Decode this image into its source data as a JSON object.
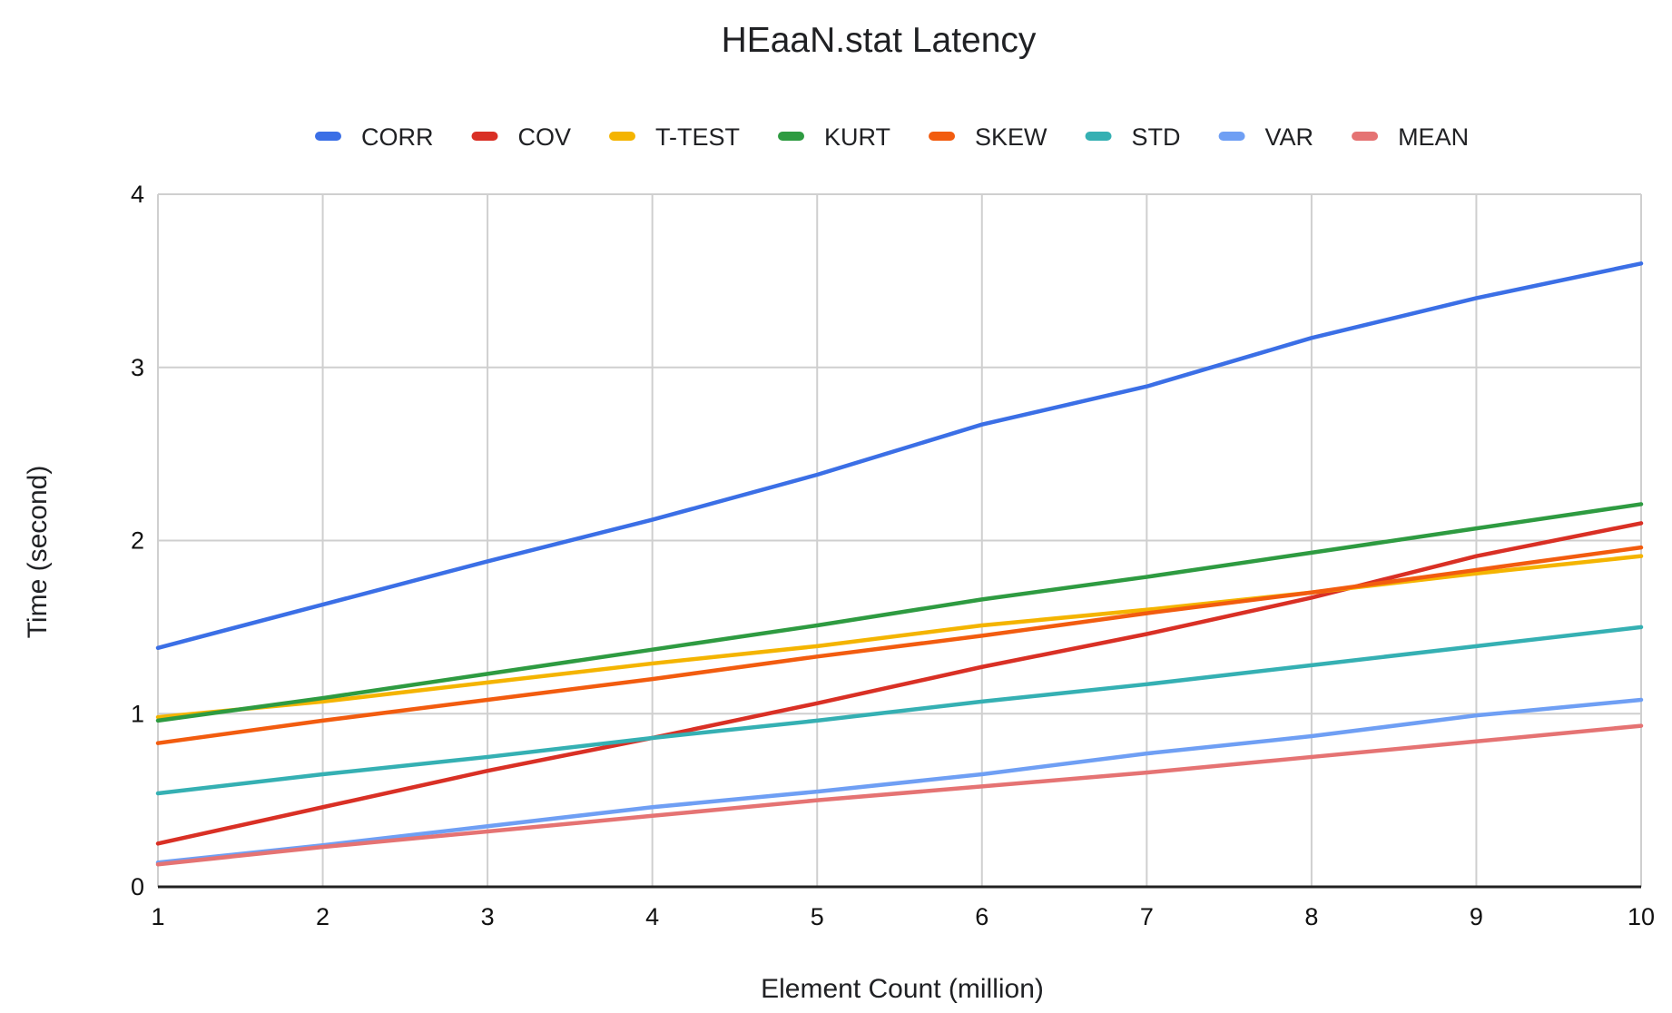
{
  "chart_data": {
    "type": "line",
    "title": "HEaaN.stat Latency",
    "xlabel": "Element Count (million)",
    "ylabel": "Time (second)",
    "x": [
      1,
      2,
      3,
      4,
      5,
      6,
      7,
      8,
      9,
      10
    ],
    "x_tick_labels": [
      "1",
      "2",
      "3",
      "4",
      "5",
      "6",
      "7",
      "8",
      "9",
      "10"
    ],
    "xlim": [
      1,
      10
    ],
    "ylim": [
      0,
      4
    ],
    "y_ticks": [
      0,
      1,
      2,
      3,
      4
    ],
    "y_tick_labels": [
      "0",
      "1",
      "2",
      "3",
      "4"
    ],
    "grid": true,
    "legend_position": "top-center",
    "series": [
      {
        "name": "CORR",
        "color": "#3b6fe6",
        "values": [
          1.38,
          1.63,
          1.88,
          2.12,
          2.38,
          2.67,
          2.89,
          3.17,
          3.4,
          3.6
        ]
      },
      {
        "name": "COV",
        "color": "#d93025",
        "values": [
          0.25,
          0.46,
          0.67,
          0.86,
          1.06,
          1.27,
          1.46,
          1.67,
          1.91,
          2.1
        ]
      },
      {
        "name": "T-TEST",
        "color": "#f4b400",
        "values": [
          0.98,
          1.07,
          1.18,
          1.29,
          1.39,
          1.51,
          1.6,
          1.7,
          1.81,
          1.91
        ]
      },
      {
        "name": "KURT",
        "color": "#2e9b41",
        "values": [
          0.96,
          1.09,
          1.23,
          1.37,
          1.51,
          1.66,
          1.79,
          1.93,
          2.07,
          2.21
        ]
      },
      {
        "name": "SKEW",
        "color": "#f25c0f",
        "values": [
          0.83,
          0.96,
          1.08,
          1.2,
          1.33,
          1.45,
          1.58,
          1.7,
          1.83,
          1.96
        ]
      },
      {
        "name": "STD",
        "color": "#35b0b3",
        "values": [
          0.54,
          0.65,
          0.75,
          0.86,
          0.96,
          1.07,
          1.17,
          1.28,
          1.39,
          1.5
        ]
      },
      {
        "name": "VAR",
        "color": "#6f9ff4",
        "values": [
          0.14,
          0.24,
          0.35,
          0.46,
          0.55,
          0.65,
          0.77,
          0.87,
          0.99,
          1.08
        ]
      },
      {
        "name": "MEAN",
        "color": "#e57373",
        "values": [
          0.13,
          0.23,
          0.32,
          0.41,
          0.5,
          0.58,
          0.66,
          0.75,
          0.84,
          0.93
        ]
      }
    ]
  }
}
